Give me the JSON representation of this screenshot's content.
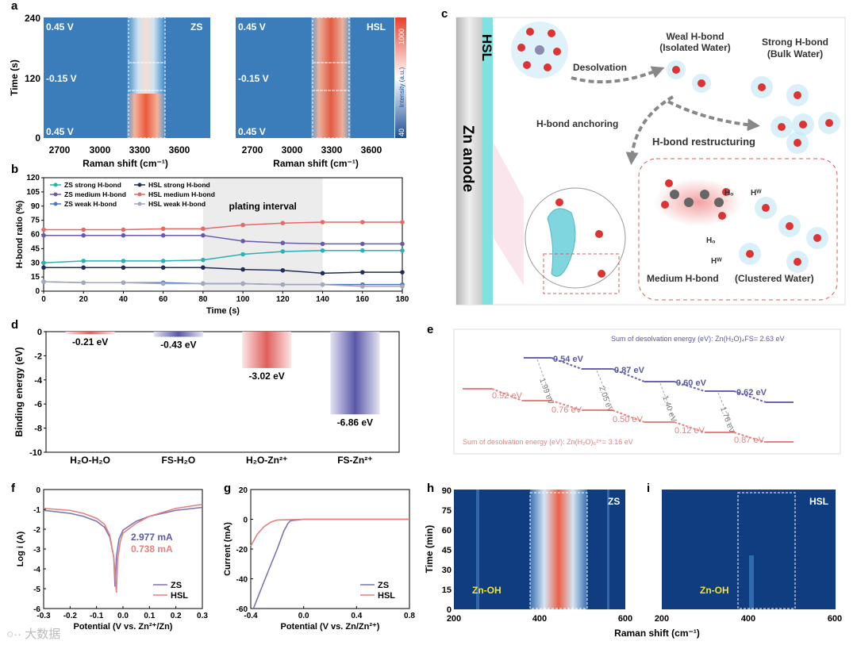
{
  "panels": {
    "a": "a",
    "b": "b",
    "c": "c",
    "d": "d",
    "e": "e",
    "f": "f",
    "g": "g",
    "h": "h",
    "i": "i"
  },
  "panel_a": {
    "ylabel": "Time (s)",
    "xlabel": "Raman shift (cm⁻¹)",
    "yticks": [
      "0",
      "120",
      "240"
    ],
    "xticks": [
      "2700",
      "3000",
      "3300",
      "3600"
    ],
    "left_title": "ZS",
    "right_title": "HSL",
    "voltages": [
      "0.45 V",
      "-0.15 V",
      "0.45 V"
    ],
    "colorbar": {
      "label": "Intensity (a.u.)",
      "max": "1000",
      "min": "40"
    }
  },
  "panel_c": {
    "electrode": "Zn anode",
    "layer": "HSL",
    "desolvation": "Desolvation",
    "weak_title": "Weal H-bond",
    "weak_sub": "(Isolated Water)",
    "strong_title": "Strong H-bond",
    "strong_sub": "(Bulk Water)",
    "anchoring": "H-bond anchoring",
    "restructuring": "H-bond restructuring",
    "medium": "Medium H-bond",
    "clustered": "(Clustered Water)",
    "hf": "Hₒ",
    "hw": "Hᵂ"
  },
  "panel_d": {
    "ylabel": "Binding energy (eV)",
    "labels": [
      "-0.21 eV",
      "-0.43 eV",
      "-3.02 eV",
      "-6.86 eV"
    ]
  },
  "panel_e": {
    "fs_sum": "Sum of desolvation energy (eV): Zn(H₂O)₄FS= 2.63 eV",
    "h2o_sum": "Sum of desolvation energy (eV):  Zn(H₂O)₆²⁺= 3.16 eV",
    "fs_steps": [
      "0.54 eV",
      "0.87 eV",
      "0.60 eV",
      "0.62 eV"
    ],
    "h2o_steps": [
      "0.92 eV",
      "0.76 eV",
      "0.50 eV",
      "0.12 eV",
      "0.87 eV"
    ],
    "gaps": [
      "1.99 eV",
      "2.05 eV",
      "1.40 eV",
      "1.76 eV"
    ]
  },
  "panel_f": {
    "ylabel": "Log i (A)",
    "xlabel": "Potential (V vs. Zn²⁺/Zn)",
    "ann1": "2.977 mA",
    "ann2": "0.738 mA"
  },
  "panel_g": {
    "ylabel": "Current (mA)",
    "xlabel": "Potential (V vs. Zn/Zn²⁺)"
  },
  "panel_hi": {
    "ylabel": "Time (min)",
    "xlabel": "Raman shift (cm⁻¹)",
    "yticks": [
      "0",
      "15",
      "30",
      "45",
      "60",
      "75",
      "90"
    ],
    "xticks": [
      "200",
      "400",
      "600"
    ],
    "h_title": "ZS",
    "i_title": "HSL",
    "peak_label": "Zn-OH"
  },
  "watermark": "○·· 大数据",
  "colors": {
    "zs": "#7a74b3",
    "hsl": "#e5817f",
    "teal": "#2ab0b5",
    "navy": "#1f2d5a",
    "heat_blue": "#1c4f96",
    "heat_red": "#e8402a"
  },
  "chart_data": [
    {
      "id": "b",
      "type": "line",
      "title": "plating interval",
      "xlabel": "Time (s)",
      "ylabel": "H-bond ratio (%)",
      "xlim": [
        0,
        180
      ],
      "ylim": [
        0,
        120
      ],
      "xticks": [
        0,
        20,
        40,
        60,
        80,
        100,
        120,
        140,
        160,
        180
      ],
      "yticks": [
        0,
        15,
        30,
        45,
        60,
        75,
        90,
        105,
        120
      ],
      "ytick_labels": [
        "0",
        "15",
        "30",
        "45",
        "60",
        "75",
        "90",
        "105",
        "120"
      ],
      "shaded_interval": [
        80,
        140
      ],
      "x": [
        0,
        20,
        40,
        60,
        80,
        100,
        120,
        140,
        160,
        180
      ],
      "series": [
        {
          "name": "ZS strong H-bond",
          "color": "#2ab0b5",
          "values": [
            30,
            32,
            32,
            32,
            33,
            39,
            42,
            43,
            43,
            43
          ]
        },
        {
          "name": "HSL strong H-bond",
          "color": "#1f2d5a",
          "values": [
            25,
            25,
            25,
            25,
            25,
            23,
            22,
            19,
            20,
            20
          ]
        },
        {
          "name": "ZS medium H-bond",
          "color": "#6a5aa8",
          "values": [
            59,
            59,
            59,
            59,
            59,
            53,
            51,
            50,
            50,
            50
          ]
        },
        {
          "name": "HSL medium H-bond",
          "color": "#e36a66",
          "values": [
            65,
            65,
            65,
            66,
            66,
            70,
            72,
            73,
            73,
            73
          ]
        },
        {
          "name": "ZS weak H-bond",
          "color": "#4a78c4",
          "values": [
            10,
            9,
            9,
            9,
            8,
            8,
            7,
            7,
            7,
            7
          ]
        },
        {
          "name": "HSL weak H-bond",
          "color": "#a5a8b8",
          "values": [
            10,
            9,
            9,
            8,
            8,
            8,
            7,
            7,
            5,
            5
          ]
        }
      ]
    },
    {
      "id": "d",
      "type": "bar",
      "ylabel": "Binding energy (eV)",
      "ylim": [
        -10,
        0
      ],
      "yticks": [
        0,
        -2,
        -4,
        -6,
        -8,
        -10
      ],
      "categories": [
        "H₂O-H₂O",
        "FS-H₂O",
        "H₂O-Zn²⁺",
        "FS-Zn²⁺"
      ],
      "values": [
        -0.21,
        -0.43,
        -3.02,
        -6.86
      ],
      "colors": [
        "#e05f5c",
        "#5a58a6",
        "#e05f5c",
        "#5a58a6"
      ]
    },
    {
      "id": "f",
      "type": "line",
      "xlabel": "Potential (V vs. Zn²⁺/Zn)",
      "ylabel": "Log i (A)",
      "xlim": [
        -0.3,
        0.3
      ],
      "ylim": [
        -6,
        0
      ],
      "xticks": [
        -0.3,
        -0.2,
        -0.1,
        0.0,
        0.1,
        0.2,
        0.3
      ],
      "xtick_labels": [
        "-0.3",
        "-0.2",
        "-0.1",
        "0.0",
        "0.1",
        "0.2",
        "0.3"
      ],
      "yticks": [
        0,
        -1,
        -2,
        -3,
        -4,
        -5,
        -6
      ],
      "series": [
        {
          "name": "ZS",
          "color": "#7a74b3",
          "x": [
            -0.3,
            -0.2,
            -0.15,
            -0.1,
            -0.07,
            -0.05,
            -0.035,
            -0.03,
            -0.025,
            -0.015,
            0.0,
            0.05,
            0.1,
            0.2,
            0.3
          ],
          "values": [
            -1.05,
            -1.2,
            -1.35,
            -1.6,
            -1.9,
            -2.4,
            -3.4,
            -4.9,
            -3.4,
            -2.5,
            -2.05,
            -1.6,
            -1.35,
            -1.05,
            -0.9
          ]
        },
        {
          "name": "HSL",
          "color": "#e5817f",
          "x": [
            -0.3,
            -0.2,
            -0.15,
            -0.1,
            -0.07,
            -0.05,
            -0.035,
            -0.025,
            -0.02,
            -0.01,
            0.0,
            0.05,
            0.1,
            0.2,
            0.3
          ],
          "values": [
            -0.95,
            -1.05,
            -1.2,
            -1.45,
            -1.75,
            -2.3,
            -3.4,
            -5.2,
            -3.5,
            -2.6,
            -2.2,
            -1.7,
            -1.35,
            -0.95,
            -0.75
          ]
        }
      ]
    },
    {
      "id": "g",
      "type": "line",
      "xlabel": "Potential (V vs. Zn/Zn²⁺)",
      "ylabel": "Current (mA)",
      "xlim": [
        -0.4,
        0.8
      ],
      "ylim": [
        -60,
        20
      ],
      "xticks": [
        -0.4,
        0.0,
        0.4,
        0.8
      ],
      "xtick_labels": [
        "-0.4",
        "0.0",
        "0.4",
        "0.8"
      ],
      "yticks": [
        20,
        0,
        -20,
        -40,
        -60
      ],
      "series": [
        {
          "name": "ZS",
          "color": "#7a74b3",
          "x": [
            -0.38,
            -0.3,
            -0.2,
            -0.15,
            -0.12,
            -0.1,
            0.0,
            0.4,
            0.8
          ],
          "values": [
            -60,
            -42,
            -20,
            -8,
            -3,
            -1,
            0,
            0,
            0
          ]
        },
        {
          "name": "HSL",
          "color": "#e5817f",
          "x": [
            -0.4,
            -0.35,
            -0.3,
            -0.25,
            -0.22,
            -0.2,
            0.0,
            0.4,
            0.8
          ],
          "values": [
            -18,
            -10,
            -5,
            -2,
            -1,
            -0.5,
            0,
            0,
            0
          ]
        }
      ]
    }
  ]
}
